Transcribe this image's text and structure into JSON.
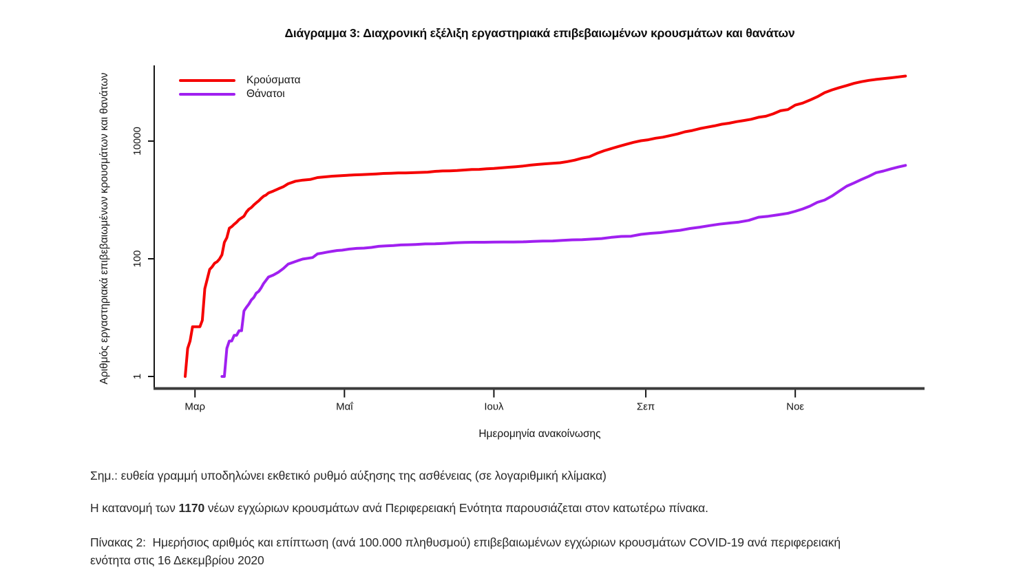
{
  "chart": {
    "title": "Διάγραμμα 3: Διαχρονική εξέλιξη εργαστηριακά επιβεβαιωμένων κρουσμάτων και θανάτων",
    "x_axis_title": "Ημερομηνία ανακοίνωσης",
    "y_axis_title": "Αριθμός εργαστηριακά επιβεβαιωμένων κρουσμάτων και θανάτων"
  },
  "chart_data": {
    "type": "line",
    "title": "Διάγραμμα 3: Διαχρονική εξέλιξη εργαστηριακά επιβεβαιωμένων κρουσμάτων και θανάτων",
    "xlabel": "Ημερομηνία ανακοίνωσης",
    "ylabel": "Αριθμός εργαστηριακά επιβεβαιωμένων κρουσμάτων και θανάτων",
    "y_scale": "log10",
    "ylim": [
      1,
      200000
    ],
    "grid": "off",
    "legend_position": "top-left",
    "x_unit": "day_of_year_2020",
    "x_range_days": [
      57,
      351
    ],
    "x_ticks": [
      {
        "label": "Μαρ",
        "day": 61
      },
      {
        "label": "Μαΐ",
        "day": 122
      },
      {
        "label": "Ιουλ",
        "day": 183
      },
      {
        "label": "Σεπ",
        "day": 245
      },
      {
        "label": "Νοε",
        "day": 306
      }
    ],
    "y_ticks": [
      {
        "label": "1",
        "value": 1
      },
      {
        "label": "100",
        "value": 100
      },
      {
        "label": "10000",
        "value": 10000
      }
    ],
    "series": [
      {
        "name": "Κρούσματα",
        "color": "#f50000",
        "points": [
          [
            57,
            1
          ],
          [
            58,
            3
          ],
          [
            59,
            4
          ],
          [
            60,
            7
          ],
          [
            61,
            7
          ],
          [
            62,
            7
          ],
          [
            63,
            7
          ],
          [
            64,
            9
          ],
          [
            65,
            31
          ],
          [
            66,
            45
          ],
          [
            67,
            66
          ],
          [
            68,
            73
          ],
          [
            69,
            84
          ],
          [
            70,
            89
          ],
          [
            71,
            99
          ],
          [
            72,
            117
          ],
          [
            73,
            190
          ],
          [
            74,
            228
          ],
          [
            75,
            331
          ],
          [
            76,
            352
          ],
          [
            77,
            387
          ],
          [
            78,
            418
          ],
          [
            79,
            464
          ],
          [
            80,
            495
          ],
          [
            81,
            530
          ],
          [
            82,
            624
          ],
          [
            83,
            695
          ],
          [
            84,
            743
          ],
          [
            85,
            821
          ],
          [
            86,
            892
          ],
          [
            87,
            966
          ],
          [
            88,
            1061
          ],
          [
            89,
            1156
          ],
          [
            90,
            1212
          ],
          [
            91,
            1314
          ],
          [
            93,
            1415
          ],
          [
            95,
            1544
          ],
          [
            97,
            1673
          ],
          [
            99,
            1884
          ],
          [
            102,
            2081
          ],
          [
            105,
            2170
          ],
          [
            108,
            2224
          ],
          [
            111,
            2401
          ],
          [
            114,
            2463
          ],
          [
            117,
            2534
          ],
          [
            120,
            2576
          ],
          [
            123,
            2620
          ],
          [
            126,
            2663
          ],
          [
            129,
            2691
          ],
          [
            132,
            2726
          ],
          [
            135,
            2770
          ],
          [
            138,
            2819
          ],
          [
            141,
            2840
          ],
          [
            144,
            2873
          ],
          [
            147,
            2882
          ],
          [
            150,
            2906
          ],
          [
            153,
            2937
          ],
          [
            156,
            2967
          ],
          [
            159,
            3058
          ],
          [
            162,
            3108
          ],
          [
            165,
            3121
          ],
          [
            168,
            3158
          ],
          [
            171,
            3227
          ],
          [
            174,
            3287
          ],
          [
            177,
            3310
          ],
          [
            180,
            3390
          ],
          [
            183,
            3432
          ],
          [
            186,
            3511
          ],
          [
            189,
            3589
          ],
          [
            192,
            3672
          ],
          [
            195,
            3772
          ],
          [
            198,
            3910
          ],
          [
            201,
            4012
          ],
          [
            204,
            4110
          ],
          [
            207,
            4193
          ],
          [
            210,
            4279
          ],
          [
            213,
            4477
          ],
          [
            216,
            4737
          ],
          [
            219,
            5123
          ],
          [
            222,
            5421
          ],
          [
            225,
            6177
          ],
          [
            228,
            6858
          ],
          [
            231,
            7472
          ],
          [
            234,
            8138
          ],
          [
            237,
            8819
          ],
          [
            240,
            9531
          ],
          [
            243,
            10134
          ],
          [
            246,
            10524
          ],
          [
            249,
            11211
          ],
          [
            252,
            11663
          ],
          [
            255,
            12452
          ],
          [
            258,
            13240
          ],
          [
            261,
            14400
          ],
          [
            264,
            15142
          ],
          [
            267,
            16286
          ],
          [
            270,
            17228
          ],
          [
            273,
            18123
          ],
          [
            276,
            19346
          ],
          [
            279,
            20142
          ],
          [
            282,
            21381
          ],
          [
            285,
            22358
          ],
          [
            288,
            23495
          ],
          [
            291,
            25370
          ],
          [
            294,
            26469
          ],
          [
            297,
            29057
          ],
          [
            300,
            32752
          ],
          [
            303,
            34299
          ],
          [
            306,
            40929
          ],
          [
            309,
            44246
          ],
          [
            312,
            49807
          ],
          [
            315,
            56698
          ],
          [
            318,
            66637
          ],
          [
            321,
            74205
          ],
          [
            324,
            81100
          ],
          [
            327,
            87812
          ],
          [
            330,
            95683
          ],
          [
            333,
            102226
          ],
          [
            336,
            107470
          ],
          [
            339,
            111537
          ],
          [
            342,
            115143
          ],
          [
            345,
            118955
          ],
          [
            348,
            123163
          ],
          [
            351,
            127557
          ]
        ]
      },
      {
        "name": "Θάνατοι",
        "color": "#a020f0",
        "points": [
          [
            72,
            1
          ],
          [
            73,
            1
          ],
          [
            74,
            3
          ],
          [
            75,
            4
          ],
          [
            76,
            4
          ],
          [
            77,
            5
          ],
          [
            78,
            5
          ],
          [
            79,
            6
          ],
          [
            80,
            6
          ],
          [
            81,
            13
          ],
          [
            82,
            15
          ],
          [
            83,
            17
          ],
          [
            84,
            20
          ],
          [
            85,
            22
          ],
          [
            86,
            26
          ],
          [
            87,
            28
          ],
          [
            88,
            32
          ],
          [
            89,
            38
          ],
          [
            90,
            43
          ],
          [
            91,
            49
          ],
          [
            93,
            53
          ],
          [
            95,
            59
          ],
          [
            97,
            68
          ],
          [
            99,
            81
          ],
          [
            101,
            87
          ],
          [
            103,
            93
          ],
          [
            105,
            99
          ],
          [
            107,
            102
          ],
          [
            109,
            105
          ],
          [
            111,
            121
          ],
          [
            113,
            125
          ],
          [
            115,
            130
          ],
          [
            117,
            134
          ],
          [
            119,
            138
          ],
          [
            121,
            140
          ],
          [
            124,
            146
          ],
          [
            127,
            150
          ],
          [
            130,
            152
          ],
          [
            133,
            156
          ],
          [
            136,
            163
          ],
          [
            139,
            166
          ],
          [
            142,
            168
          ],
          [
            145,
            172
          ],
          [
            148,
            173
          ],
          [
            151,
            175
          ],
          [
            155,
            179
          ],
          [
            159,
            180
          ],
          [
            163,
            183
          ],
          [
            167,
            187
          ],
          [
            171,
            190
          ],
          [
            175,
            191
          ],
          [
            179,
            191
          ],
          [
            183,
            192
          ],
          [
            187,
            193
          ],
          [
            191,
            193
          ],
          [
            195,
            194
          ],
          [
            199,
            197
          ],
          [
            203,
            200
          ],
          [
            207,
            201
          ],
          [
            211,
            206
          ],
          [
            215,
            210
          ],
          [
            219,
            211
          ],
          [
            223,
            216
          ],
          [
            227,
            221
          ],
          [
            231,
            232
          ],
          [
            235,
            240
          ],
          [
            239,
            242
          ],
          [
            243,
            260
          ],
          [
            247,
            271
          ],
          [
            251,
            278
          ],
          [
            255,
            293
          ],
          [
            259,
            305
          ],
          [
            263,
            327
          ],
          [
            267,
            344
          ],
          [
            271,
            366
          ],
          [
            275,
            388
          ],
          [
            279,
            405
          ],
          [
            283,
            420
          ],
          [
            287,
            449
          ],
          [
            291,
            509
          ],
          [
            295,
            528
          ],
          [
            299,
            559
          ],
          [
            303,
            593
          ],
          [
            306,
            642
          ],
          [
            309,
            702
          ],
          [
            312,
            784
          ],
          [
            315,
            909
          ],
          [
            318,
            997
          ],
          [
            321,
            1165
          ],
          [
            324,
            1419
          ],
          [
            327,
            1714
          ],
          [
            330,
            1944
          ],
          [
            333,
            2223
          ],
          [
            336,
            2517
          ],
          [
            339,
            2902
          ],
          [
            342,
            3099
          ],
          [
            345,
            3370
          ],
          [
            348,
            3625
          ],
          [
            351,
            3870
          ]
        ]
      }
    ]
  },
  "notes": {
    "note1": "Σημ.: ευθεία γραμμή υποδηλώνει εκθετικό ρυθμό αύξησης της ασθένειας (σε λογαριθμική κλίμακα)",
    "note2_prefix": "Η κατανομή των ",
    "note2_bold": "1170",
    "note2_suffix": " νέων εγχώριων κρουσμάτων ανά Περιφερειακή Ενότητα παρουσιάζεται στον κατωτέρω πίνακα.",
    "caption_line1": "Πίνακας 2:  Ημερήσιος αριθμός και επίπτωση (ανά 100.000 πληθυσμού) επιβεβαιωμένων εγχώριων κρουσμάτων COVID-19 ανά περιφερειακή",
    "caption_line2": "ενότητα στις 16 Δεκεμβρίου 2020"
  }
}
